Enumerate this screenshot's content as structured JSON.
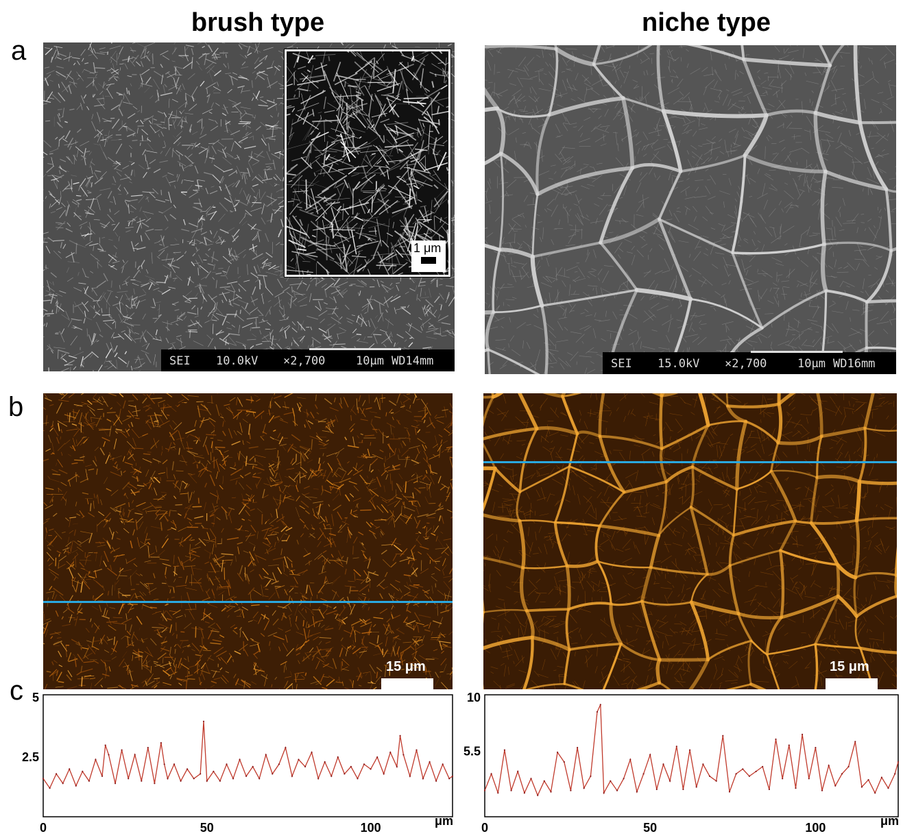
{
  "columns": {
    "left_title": "brush type",
    "right_title": "niche type"
  },
  "panel_letters": {
    "a": "a",
    "b": "b",
    "c": "c"
  },
  "sem_left": {
    "info": [
      "SEI",
      "10.0kV",
      "×2,700",
      "10μm",
      "WD14mm"
    ],
    "inset_scale": "1 μm"
  },
  "sem_right": {
    "info": [
      "SEI",
      "15.0kV",
      "×2,700",
      "10μm",
      "WD16mm"
    ]
  },
  "afm_left": {
    "scale_label": "15 μm",
    "line_color": "#2aa8e0"
  },
  "afm_right": {
    "scale_label": "15 μm",
    "line_color": "#2aa8e0"
  },
  "chart_data": [
    {
      "type": "line",
      "title": "",
      "xlabel": "μm",
      "ylabel": "",
      "xlim": [
        0,
        125
      ],
      "ylim": [
        0,
        5
      ],
      "xticks": [
        "0",
        "50",
        "100"
      ],
      "yticks": [
        "2.5",
        "5"
      ],
      "color": "#c0392b",
      "series": [
        {
          "x": [
            0,
            2,
            4,
            6,
            8,
            10,
            12,
            14,
            16,
            18,
            19,
            20,
            22,
            24,
            26,
            28,
            30,
            32,
            34,
            36,
            37,
            38,
            40,
            42,
            44,
            46,
            48,
            49,
            50,
            52,
            54,
            56,
            58,
            60,
            62,
            64,
            66,
            68,
            70,
            72,
            74,
            76,
            78,
            80,
            82,
            84,
            86,
            88,
            90,
            92,
            94,
            96,
            98,
            100,
            102,
            104,
            106,
            108,
            109,
            110,
            112,
            114,
            116,
            118,
            120,
            122,
            124,
            125
          ],
          "values": [
            1.6,
            1.2,
            1.8,
            1.4,
            2.0,
            1.3,
            1.9,
            1.5,
            2.4,
            1.7,
            3.0,
            2.6,
            1.4,
            2.8,
            1.6,
            2.6,
            1.5,
            2.9,
            1.4,
            3.1,
            2.2,
            1.6,
            2.2,
            1.5,
            2.0,
            1.6,
            1.8,
            4.0,
            1.5,
            1.9,
            1.5,
            2.2,
            1.6,
            2.4,
            1.7,
            2.1,
            1.6,
            2.6,
            1.8,
            2.2,
            2.9,
            1.7,
            2.4,
            2.1,
            2.7,
            1.6,
            2.3,
            1.7,
            2.5,
            1.8,
            2.1,
            1.6,
            2.2,
            2.0,
            2.5,
            1.8,
            2.7,
            2.1,
            3.4,
            2.6,
            1.7,
            2.8,
            1.6,
            2.3,
            1.5,
            2.2,
            1.6,
            1.7
          ]
        }
      ]
    },
    {
      "type": "line",
      "title": "",
      "xlabel": "μm",
      "ylabel": "",
      "xlim": [
        0,
        125
      ],
      "ylim": [
        0,
        10
      ],
      "xticks": [
        "0",
        "50",
        "100"
      ],
      "yticks": [
        "5.5",
        "10"
      ],
      "color": "#c0392b",
      "series": [
        {
          "x": [
            0,
            2,
            4,
            6,
            8,
            10,
            12,
            14,
            16,
            18,
            20,
            22,
            24,
            26,
            28,
            30,
            32,
            34,
            35,
            36,
            38,
            40,
            42,
            44,
            46,
            48,
            50,
            52,
            54,
            56,
            58,
            60,
            62,
            64,
            66,
            68,
            70,
            72,
            74,
            76,
            78,
            80,
            82,
            84,
            86,
            88,
            90,
            92,
            94,
            96,
            98,
            100,
            102,
            104,
            106,
            108,
            110,
            112,
            114,
            116,
            118,
            120,
            122,
            124,
            125
          ],
          "values": [
            2.2,
            3.6,
            2.0,
            5.6,
            2.2,
            3.8,
            2.0,
            3.2,
            1.8,
            3.0,
            2.1,
            5.4,
            4.6,
            2.2,
            5.8,
            2.4,
            3.4,
            8.8,
            9.4,
            2.0,
            3.0,
            2.2,
            3.2,
            4.8,
            2.1,
            3.6,
            5.2,
            2.3,
            4.4,
            3.0,
            5.9,
            2.3,
            5.6,
            2.5,
            4.4,
            3.4,
            3.0,
            6.8,
            2.1,
            3.6,
            4.0,
            3.4,
            3.8,
            4.2,
            2.3,
            6.5,
            3.2,
            6.0,
            2.4,
            6.9,
            3.2,
            5.8,
            2.2,
            4.3,
            2.6,
            3.6,
            4.2,
            6.3,
            2.5,
            3.1,
            2.0,
            3.3,
            2.4,
            3.6,
            4.6
          ]
        }
      ]
    }
  ]
}
